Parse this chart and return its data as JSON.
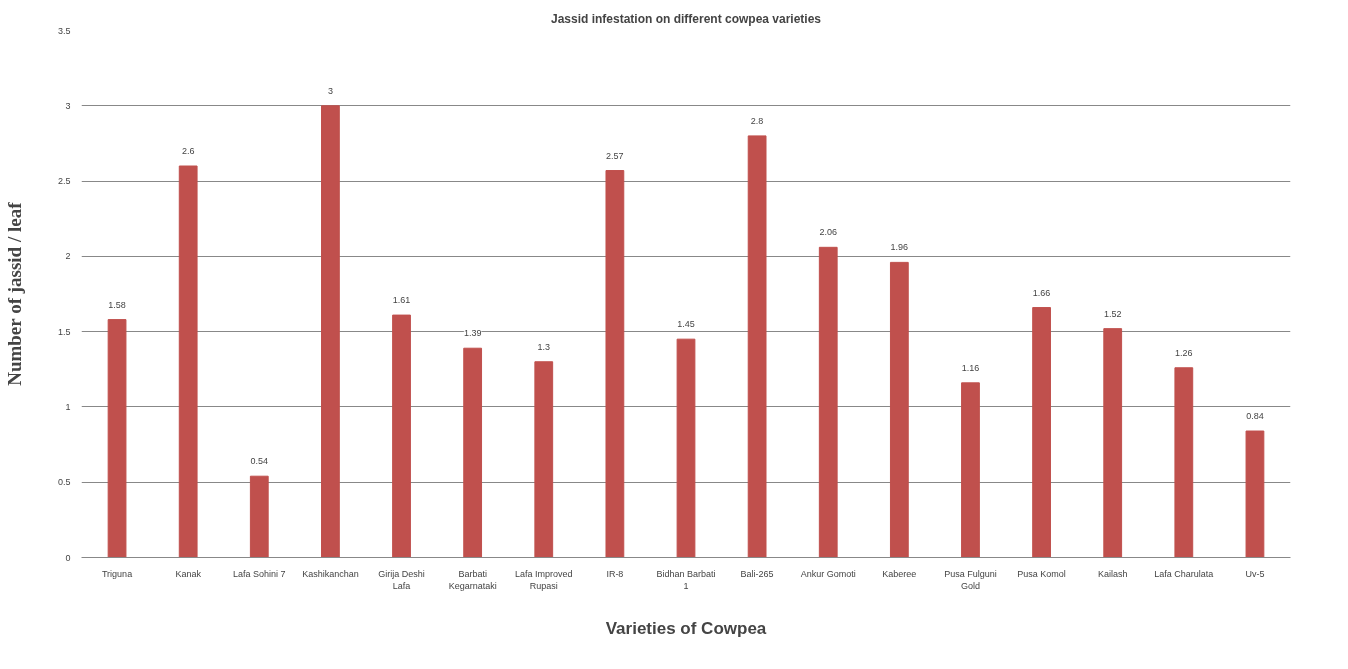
{
  "chart_data": {
    "type": "bar",
    "title": "Jassid infestation on different cowpea varieties",
    "xlabel": "Varieties of Cowpea",
    "ylabel": "Number of jassid / leaf",
    "categories": [
      "Triguna",
      "Kanak",
      "Lafa Sohini 7",
      "Kashikanchan",
      "Girija Deshi Lafa",
      "Barbati Kegarnataki",
      "Lafa Improved Rupasi",
      "IR-8",
      "Bidhan Barbati 1",
      "Bali-265",
      "Ankur Gomoti",
      "Kaberee",
      "Pusa Fulguni Gold",
      "Pusa Komol",
      "Kailash",
      "Lafa Charulata",
      "Uv-5"
    ],
    "values": [
      1.58,
      2.6,
      0.54,
      3,
      1.61,
      1.39,
      1.3,
      2.57,
      1.45,
      2.8,
      2.06,
      1.96,
      1.16,
      1.66,
      1.52,
      1.26,
      0.84
    ],
    "color": "#c0504d",
    "ylim": [
      0,
      3.5
    ],
    "yticks": [
      0,
      0.5,
      1,
      1.5,
      2,
      2.5,
      3,
      3.5
    ],
    "grid": "y",
    "data_labels": true
  }
}
